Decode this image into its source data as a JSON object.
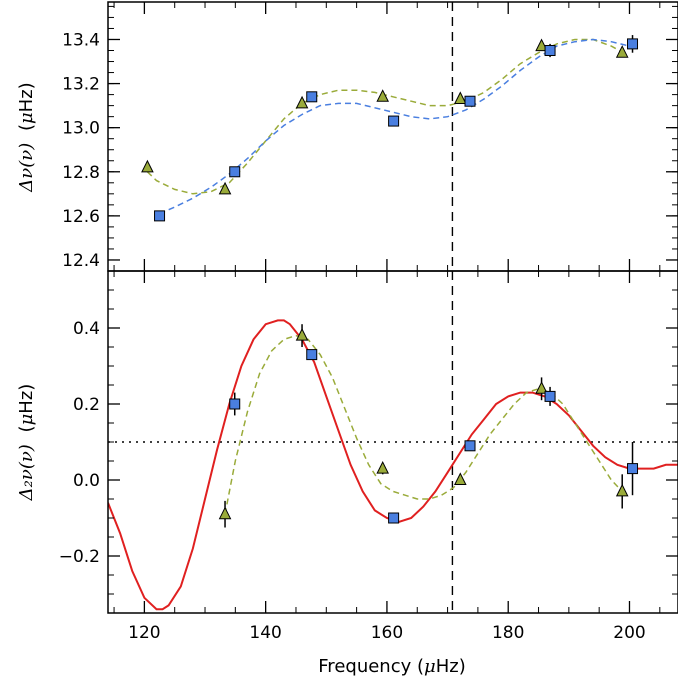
{
  "chart_data": [
    {
      "type": "scatter",
      "panel": "top",
      "ylabel": {
        "main": "Δν(ν)",
        "unit_prefix": "(",
        "unit_greek": "μ",
        "unit_rest": "Hz)"
      },
      "xlim": [
        114,
        208
      ],
      "ylim": [
        12.35,
        13.57
      ],
      "yticks": [
        12.4,
        12.6,
        12.8,
        13.0,
        13.2,
        13.4
      ],
      "ytick_labels": [
        "12.4",
        "12.6",
        "12.8",
        "13.0",
        "13.2",
        "13.4"
      ],
      "vline_x": 170.8,
      "series": [
        {
          "marker": "triangle",
          "color": "#9aab3a",
          "points": [
            [
              120.5,
              12.82
            ],
            [
              133.3,
              12.72
            ],
            [
              146.0,
              13.11
            ],
            [
              159.3,
              13.14
            ],
            [
              172.1,
              13.13
            ],
            [
              185.5,
              13.37
            ],
            [
              198.8,
              13.34
            ]
          ]
        },
        {
          "marker": "square",
          "color": "#4a7fe0",
          "points": [
            [
              122.5,
              12.6
            ],
            [
              134.9,
              12.8
            ],
            [
              147.6,
              13.14
            ],
            [
              161.1,
              13.03
            ],
            [
              173.7,
              13.12
            ],
            [
              186.9,
              13.35
            ],
            [
              200.5,
              13.38
            ]
          ],
          "errors": [
            0.008,
            0.008,
            0.008,
            0.008,
            0.008,
            0.03,
            0.04
          ]
        },
        {
          "line": "dashed",
          "color": "#9aab3a",
          "points": [
            [
              120.5,
              12.8
            ],
            [
              122,
              12.76
            ],
            [
              125,
              12.72
            ],
            [
              128,
              12.7
            ],
            [
              131,
              12.71
            ],
            [
              134,
              12.75
            ],
            [
              137,
              12.84
            ],
            [
              140,
              12.94
            ],
            [
              143,
              13.04
            ],
            [
              146,
              13.11
            ],
            [
              149,
              13.15
            ],
            [
              152,
              13.17
            ],
            [
              155,
              13.17
            ],
            [
              158,
              13.16
            ],
            [
              161,
              13.14
            ],
            [
              164,
              13.12
            ],
            [
              167,
              13.1
            ],
            [
              170,
              13.1
            ],
            [
              173,
              13.12
            ],
            [
              176,
              13.16
            ],
            [
              179,
              13.22
            ],
            [
              182,
              13.29
            ],
            [
              185,
              13.34
            ],
            [
              188,
              13.38
            ],
            [
              191,
              13.4
            ],
            [
              194,
              13.4
            ],
            [
              197,
              13.37
            ],
            [
              199,
              13.34
            ]
          ]
        },
        {
          "line": "dashed",
          "color": "#4a7fe0",
          "points": [
            [
              122.5,
              12.61
            ],
            [
              125,
              12.64
            ],
            [
              128,
              12.68
            ],
            [
              131,
              12.73
            ],
            [
              134,
              12.79
            ],
            [
              137,
              12.86
            ],
            [
              140,
              12.94
            ],
            [
              143,
              13.01
            ],
            [
              146,
              13.06
            ],
            [
              149,
              13.1
            ],
            [
              152,
              13.11
            ],
            [
              155,
              13.11
            ],
            [
              158,
              13.09
            ],
            [
              161,
              13.07
            ],
            [
              164,
              13.05
            ],
            [
              167,
              13.04
            ],
            [
              170,
              13.05
            ],
            [
              173,
              13.08
            ],
            [
              176,
              13.13
            ],
            [
              179,
              13.19
            ],
            [
              182,
              13.26
            ],
            [
              185,
              13.32
            ],
            [
              188,
              13.37
            ],
            [
              191,
              13.39
            ],
            [
              194,
              13.4
            ],
            [
              197,
              13.39
            ],
            [
              200,
              13.37
            ],
            [
              201,
              13.36
            ]
          ]
        }
      ]
    },
    {
      "type": "scatter",
      "panel": "bottom",
      "xlabel": {
        "main": "Frequency ",
        "unit_prefix": "(",
        "unit_greek": "μ",
        "unit_rest": "Hz)"
      },
      "ylabel": {
        "main": "Δ₂ν(ν)",
        "unit_prefix": "(",
        "unit_greek": "μ",
        "unit_rest": "Hz)"
      },
      "xlim": [
        114,
        208
      ],
      "ylim": [
        -0.35,
        0.55
      ],
      "xticks": [
        120,
        140,
        160,
        180,
        200
      ],
      "xtick_labels": [
        "120",
        "140",
        "160",
        "180",
        "200"
      ],
      "yticks": [
        -0.2,
        0.0,
        0.2,
        0.4
      ],
      "ytick_labels": [
        "−0.2",
        "0.0",
        "0.2",
        "0.4"
      ],
      "vline_x": 170.8,
      "hline_y": 0.1,
      "series": [
        {
          "marker": "triangle",
          "color": "#9aab3a",
          "points": [
            [
              133.3,
              -0.09
            ],
            [
              146.0,
              0.38
            ],
            [
              159.3,
              0.03
            ],
            [
              172.1,
              0.0
            ],
            [
              185.5,
              0.24
            ],
            [
              198.8,
              -0.03
            ]
          ],
          "errors": [
            0.035,
            0.03,
            0.015,
            0.01,
            0.03,
            0.045
          ]
        },
        {
          "marker": "square",
          "color": "#4a7fe0",
          "points": [
            [
              134.9,
              0.2
            ],
            [
              147.6,
              0.33
            ],
            [
              161.1,
              -0.1
            ],
            [
              173.7,
              0.09
            ],
            [
              186.9,
              0.22
            ],
            [
              200.5,
              0.03
            ]
          ],
          "errors": [
            0.03,
            0.01,
            0.01,
            0.01,
            0.025,
            0.07
          ]
        },
        {
          "line": "solid",
          "color": "#e02020",
          "points": [
            [
              114,
              -0.06
            ],
            [
              116,
              -0.14
            ],
            [
              118,
              -0.24
            ],
            [
              120,
              -0.31
            ],
            [
              122,
              -0.34
            ],
            [
              123,
              -0.34
            ],
            [
              124,
              -0.33
            ],
            [
              126,
              -0.28
            ],
            [
              128,
              -0.18
            ],
            [
              130,
              -0.05
            ],
            [
              132,
              0.08
            ],
            [
              134,
              0.2
            ],
            [
              136,
              0.3
            ],
            [
              138,
              0.37
            ],
            [
              140,
              0.41
            ],
            [
              142,
              0.42
            ],
            [
              143,
              0.42
            ],
            [
              144,
              0.41
            ],
            [
              146,
              0.37
            ],
            [
              148,
              0.31
            ],
            [
              150,
              0.22
            ],
            [
              152,
              0.13
            ],
            [
              154,
              0.04
            ],
            [
              156,
              -0.03
            ],
            [
              158,
              -0.08
            ],
            [
              160,
              -0.1
            ],
            [
              162,
              -0.11
            ],
            [
              164,
              -0.1
            ],
            [
              166,
              -0.07
            ],
            [
              168,
              -0.03
            ],
            [
              170,
              0.02
            ],
            [
              172,
              0.07
            ],
            [
              174,
              0.12
            ],
            [
              176,
              0.16
            ],
            [
              178,
              0.2
            ],
            [
              180,
              0.22
            ],
            [
              182,
              0.23
            ],
            [
              184,
              0.23
            ],
            [
              186,
              0.22
            ],
            [
              188,
              0.2
            ],
            [
              190,
              0.17
            ],
            [
              192,
              0.13
            ],
            [
              194,
              0.09
            ],
            [
              196,
              0.06
            ],
            [
              198,
              0.04
            ],
            [
              200,
              0.03
            ],
            [
              202,
              0.03
            ],
            [
              204,
              0.03
            ],
            [
              206,
              0.04
            ],
            [
              208,
              0.04
            ]
          ]
        },
        {
          "line": "dashed",
          "color": "#9aab3a",
          "points": [
            [
              133.3,
              -0.09
            ],
            [
              135,
              0.05
            ],
            [
              137,
              0.18
            ],
            [
              139,
              0.28
            ],
            [
              141,
              0.34
            ],
            [
              143,
              0.37
            ],
            [
              145,
              0.38
            ],
            [
              147,
              0.37
            ],
            [
              149,
              0.33
            ],
            [
              151,
              0.27
            ],
            [
              153,
              0.19
            ],
            [
              155,
              0.11
            ],
            [
              157,
              0.04
            ],
            [
              159,
              -0.01
            ],
            [
              161,
              -0.03
            ],
            [
              163,
              -0.04
            ],
            [
              165,
              -0.05
            ],
            [
              167,
              -0.05
            ],
            [
              169,
              -0.04
            ],
            [
              171,
              -0.02
            ],
            [
              173,
              0.02
            ],
            [
              175,
              0.07
            ],
            [
              177,
              0.12
            ],
            [
              179,
              0.16
            ],
            [
              181,
              0.2
            ],
            [
              183,
              0.23
            ],
            [
              185,
              0.24
            ],
            [
              187,
              0.23
            ],
            [
              189,
              0.2
            ],
            [
              191,
              0.15
            ],
            [
              193,
              0.1
            ],
            [
              195,
              0.05
            ],
            [
              197,
              0.0
            ],
            [
              198.8,
              -0.03
            ]
          ]
        }
      ]
    }
  ]
}
